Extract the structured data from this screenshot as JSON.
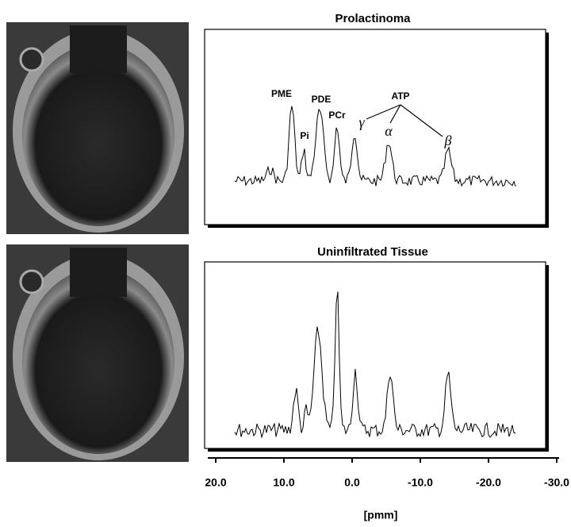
{
  "panels": [
    {
      "title": "Prolactinoma",
      "peak_labels": {
        "pme": "PME",
        "pi": "Pi",
        "pde": "PDE",
        "pcr": "PCr",
        "atp": "ATP",
        "gamma": "γ",
        "alpha": "α",
        "beta": "β"
      }
    },
    {
      "title": "Uninfiltrated Tissue"
    }
  ],
  "x_axis": {
    "label": "[pmm]",
    "lim": [
      20,
      -30
    ],
    "ticks": [
      {
        "value": 20,
        "label": "20.0"
      },
      {
        "value": 10,
        "label": "10.0"
      },
      {
        "value": 0,
        "label": "0.0"
      },
      {
        "value": -10,
        "label": "-10.0"
      },
      {
        "value": -20,
        "label": "-20.0"
      },
      {
        "value": -30,
        "label": "-30.0"
      }
    ]
  }
}
